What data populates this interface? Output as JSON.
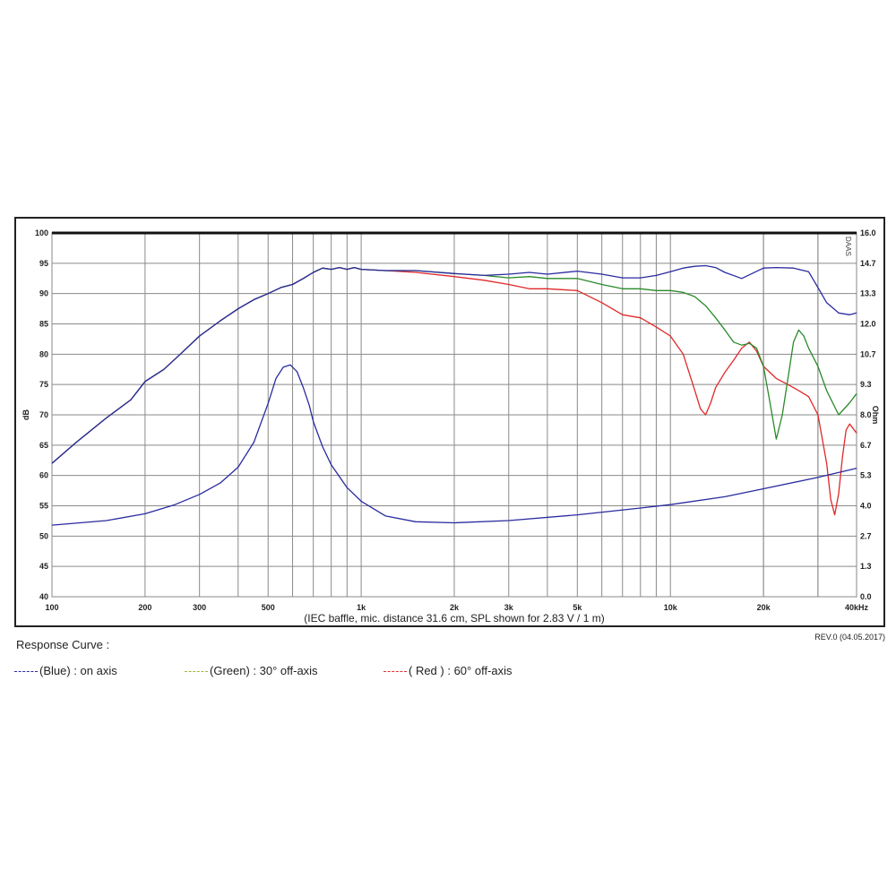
{
  "revision": "REV.0 (04.05.2017)",
  "legend_title": "Response Curve :",
  "legend": [
    {
      "label": "(Blue)  : on axis",
      "color": "#2a2aa0"
    },
    {
      "label": "(Green) : 30° off-axis",
      "color": "#9ab83a"
    },
    {
      "label": "( Red ) : 60° off-axis",
      "color": "#e03030"
    }
  ],
  "chart_data": {
    "type": "line",
    "title": "",
    "xlabel": "(IEC baffle, mic. distance 31.6 cm, SPL shown for 2.83 V / 1 m)",
    "ylabel": "dB",
    "y2label": "Ohm",
    "corner_label": "DAAS",
    "xscale": "log",
    "xlim": [
      100,
      40000
    ],
    "ylim": [
      40,
      100
    ],
    "y2lim": [
      0.0,
      16.0
    ],
    "x_ticks": [
      {
        "v": 100,
        "label": "100"
      },
      {
        "v": 200,
        "label": "200"
      },
      {
        "v": 300,
        "label": "300"
      },
      {
        "v": 500,
        "label": "500"
      },
      {
        "v": 1000,
        "label": "1k"
      },
      {
        "v": 2000,
        "label": "2k"
      },
      {
        "v": 3000,
        "label": "3k"
      },
      {
        "v": 5000,
        "label": "5k"
      },
      {
        "v": 10000,
        "label": "10k"
      },
      {
        "v": 20000,
        "label": "20k"
      },
      {
        "v": 40000,
        "label": "40kHz"
      }
    ],
    "y_ticks": [
      "100",
      "95",
      "90",
      "85",
      "80",
      "75",
      "70",
      "65",
      "60",
      "55",
      "50",
      "45",
      "40"
    ],
    "y2_ticks": [
      "16.0",
      "14.7",
      "13.3",
      "12.0",
      "10.7",
      "9.3",
      "8.0",
      "6.7",
      "5.3",
      "4.0",
      "2.7",
      "1.3",
      "0.0"
    ],
    "grid": true,
    "series": [
      {
        "name": "(Blue)  : on axis",
        "color": "#2a2aa0",
        "axis": "left",
        "x": [
          100,
          120,
          150,
          180,
          200,
          230,
          260,
          300,
          350,
          400,
          450,
          500,
          550,
          600,
          650,
          700,
          750,
          800,
          850,
          900,
          950,
          1000,
          1200,
          1500,
          2000,
          2500,
          3000,
          3500,
          4000,
          5000,
          6000,
          7000,
          8000,
          9000,
          10000,
          11000,
          12000,
          13000,
          14000,
          15000,
          17000,
          20000,
          22000,
          25000,
          28000,
          30000,
          32000,
          35000,
          38000,
          40000
        ],
        "y": [
          62,
          65.5,
          69.5,
          72.5,
          75.5,
          77.5,
          80,
          83,
          85.5,
          87.5,
          89,
          90,
          91,
          91.5,
          92.5,
          93.5,
          94.2,
          94,
          94.3,
          94,
          94.3,
          94,
          93.8,
          93.8,
          93.3,
          93,
          93.2,
          93.5,
          93.2,
          93.7,
          93.2,
          92.6,
          92.6,
          93,
          93.6,
          94.2,
          94.5,
          94.6,
          94.3,
          93.5,
          92.5,
          94.2,
          94.3,
          94.2,
          93.6,
          91,
          88.5,
          86.8,
          86.5,
          86.8
        ]
      },
      {
        "name": "(Green) : 30° off-axis",
        "color": "#2a8a2a",
        "axis": "left",
        "x": [
          100,
          120,
          150,
          180,
          200,
          230,
          260,
          300,
          350,
          400,
          450,
          500,
          550,
          600,
          650,
          700,
          750,
          800,
          850,
          900,
          950,
          1000,
          1200,
          1500,
          2000,
          2500,
          3000,
          3500,
          4000,
          5000,
          6000,
          7000,
          8000,
          9000,
          10000,
          11000,
          12000,
          13000,
          14000,
          15000,
          16000,
          17000,
          18000,
          19000,
          20000,
          21000,
          22000,
          23000,
          24000,
          25000,
          26000,
          27000,
          28000,
          30000,
          32000,
          35000,
          38000,
          40000
        ],
        "y": [
          62,
          65.5,
          69.5,
          72.5,
          75.5,
          77.5,
          80,
          83,
          85.5,
          87.5,
          89,
          90,
          91,
          91.5,
          92.5,
          93.5,
          94.2,
          94,
          94.3,
          94,
          94.3,
          94,
          93.8,
          93.8,
          93.3,
          93,
          92.6,
          92.8,
          92.5,
          92.5,
          91.5,
          90.8,
          90.8,
          90.5,
          90.5,
          90.2,
          89.5,
          88,
          86,
          84,
          82,
          81.5,
          81.8,
          81,
          78,
          72,
          66,
          70,
          76,
          82,
          84,
          83,
          81,
          78,
          74,
          70,
          72,
          73.5
        ]
      },
      {
        "name": "( Red ) : 60° off-axis",
        "color": "#e02828",
        "axis": "left",
        "x": [
          100,
          120,
          150,
          180,
          200,
          230,
          260,
          300,
          350,
          400,
          450,
          500,
          550,
          600,
          650,
          700,
          750,
          800,
          850,
          900,
          950,
          1000,
          1200,
          1500,
          2000,
          2500,
          3000,
          3500,
          4000,
          5000,
          6000,
          7000,
          8000,
          9000,
          10000,
          11000,
          12000,
          12500,
          13000,
          13500,
          14000,
          15000,
          16000,
          17000,
          18000,
          19000,
          20000,
          22000,
          24000,
          26000,
          28000,
          30000,
          32000,
          33000,
          34000,
          35000,
          36000,
          37000,
          38000,
          40000
        ],
        "y": [
          62,
          65.5,
          69.5,
          72.5,
          75.5,
          77.5,
          80,
          83,
          85.5,
          87.5,
          89,
          90,
          91,
          91.5,
          92.5,
          93.5,
          94.2,
          94,
          94.3,
          94,
          94.3,
          94,
          93.8,
          93.5,
          92.8,
          92.2,
          91.5,
          90.8,
          90.8,
          90.5,
          88.5,
          86.5,
          86,
          84.5,
          83,
          80,
          74,
          71,
          70,
          72,
          74.5,
          77,
          79,
          81,
          82,
          80.5,
          78,
          76,
          75,
          74,
          73,
          70,
          62,
          56,
          53.5,
          57,
          63,
          67.5,
          68.5,
          67
        ]
      },
      {
        "name": "",
        "color": "#2a2aa0",
        "axis": "right",
        "x": [
          100,
          150,
          200,
          250,
          300,
          350,
          400,
          450,
          500,
          530,
          560,
          590,
          620,
          650,
          680,
          700,
          750,
          800,
          900,
          1000,
          1200,
          1500,
          2000,
          3000,
          5000,
          8000,
          10000,
          15000,
          20000,
          30000,
          40000
        ],
        "y": [
          3.15,
          3.35,
          3.65,
          4.05,
          4.5,
          5.0,
          5.7,
          6.8,
          8.5,
          9.6,
          10.1,
          10.2,
          9.9,
          9.2,
          8.4,
          7.7,
          6.6,
          5.8,
          4.8,
          4.2,
          3.55,
          3.3,
          3.25,
          3.35,
          3.6,
          3.9,
          4.05,
          4.4,
          4.75,
          5.25,
          5.65
        ]
      }
    ]
  }
}
